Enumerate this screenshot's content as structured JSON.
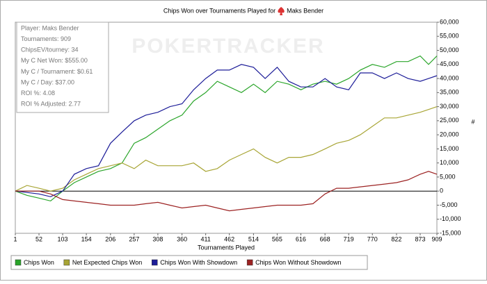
{
  "chart_data": {
    "type": "line",
    "title": "Chips Won over Tournaments Played for",
    "title_player": "Maks Bender",
    "watermark": "POKERTRACKER",
    "xlabel": "Tournaments Played",
    "ylabel": "#",
    "stats": [
      "Player: Maks Bender",
      "Tournaments: 909",
      "ChipsEV/tourney: 34",
      "My C Net Won: $555.00",
      "My C / Tournament: $0.61",
      "My C / Day: $37.00",
      "ROI %: 4.08",
      "ROI % Adjusted: 2.77"
    ],
    "x": [
      1,
      26,
      52,
      77,
      103,
      128,
      154,
      180,
      206,
      231,
      257,
      282,
      308,
      334,
      360,
      385,
      411,
      436,
      462,
      488,
      514,
      539,
      565,
      590,
      616,
      642,
      668,
      693,
      719,
      744,
      770,
      796,
      822,
      847,
      873,
      891,
      909
    ],
    "xlim": [
      1,
      909
    ],
    "xticks": [
      1,
      52,
      103,
      154,
      206,
      257,
      308,
      360,
      411,
      462,
      514,
      565,
      616,
      668,
      719,
      770,
      822,
      873,
      909
    ],
    "ylim": [
      -15000,
      60000
    ],
    "yticks": [
      {
        "value": -15000,
        "label": "-15,000"
      },
      {
        "value": -10000,
        "label": "-10,000"
      },
      {
        "value": -5000,
        "label": "-5,000"
      },
      0,
      {
        "value": 5000,
        "label": "5,000"
      },
      {
        "value": 10000,
        "label": "10,000"
      },
      {
        "value": 15000,
        "label": "15,000"
      },
      {
        "value": 20000,
        "label": "20,000"
      },
      {
        "value": 25000,
        "label": "25,000"
      },
      {
        "value": 30000,
        "label": "30,000"
      },
      {
        "value": 35000,
        "label": "35,000"
      },
      {
        "value": 40000,
        "label": "40,000"
      },
      {
        "value": 45000,
        "label": "45,000"
      },
      {
        "value": 50000,
        "label": "50,000"
      },
      {
        "value": 55000,
        "label": "55,000"
      },
      {
        "value": 60000,
        "label": "60,000"
      }
    ],
    "series": [
      {
        "name": "Chips Won",
        "color": "#2aa52a",
        "values": [
          0,
          -1500,
          -2500,
          -3500,
          0,
          3000,
          5000,
          7000,
          8000,
          10000,
          17000,
          19000,
          22000,
          25000,
          27000,
          32000,
          35000,
          39000,
          37000,
          35000,
          38000,
          35000,
          39000,
          38000,
          36000,
          38000,
          39000,
          38000,
          40000,
          43000,
          45000,
          44000,
          46000,
          46000,
          48000,
          45000,
          48000
        ]
      },
      {
        "name": "Net Expected Chips Won",
        "color": "#a8a535",
        "values": [
          0,
          2000,
          1000,
          0,
          1000,
          4000,
          6000,
          8000,
          9000,
          10000,
          8000,
          11000,
          9000,
          9000,
          9000,
          10000,
          7000,
          8000,
          11000,
          13000,
          15000,
          12000,
          10000,
          12000,
          12000,
          13000,
          15000,
          17000,
          18000,
          20000,
          23000,
          26000,
          26000,
          27000,
          28000,
          29000,
          30000
        ]
      },
      {
        "name": "Chips Won With Showdown",
        "color": "#1c1c98",
        "values": [
          0,
          -500,
          -1000,
          -2000,
          0,
          6000,
          8000,
          9000,
          17000,
          21000,
          25000,
          27000,
          28000,
          30000,
          31000,
          36000,
          40000,
          43000,
          43000,
          45000,
          44000,
          40000,
          44000,
          39000,
          37000,
          37000,
          40000,
          37000,
          36000,
          42000,
          42000,
          40000,
          42000,
          40000,
          39000,
          40000,
          41000
        ]
      },
      {
        "name": "Chips Won Without Showdown",
        "color": "#9c2222",
        "values": [
          0,
          0,
          0,
          -1000,
          -3000,
          -3500,
          -4000,
          -4500,
          -5000,
          -5000,
          -5000,
          -4500,
          -4000,
          -5000,
          -6000,
          -5500,
          -5000,
          -6000,
          -7000,
          -6500,
          -6000,
          -5500,
          -5000,
          -5000,
          -5000,
          -4500,
          -1000,
          1000,
          1000,
          1500,
          2000,
          2500,
          3000,
          4000,
          6000,
          7000,
          6000
        ]
      }
    ]
  }
}
